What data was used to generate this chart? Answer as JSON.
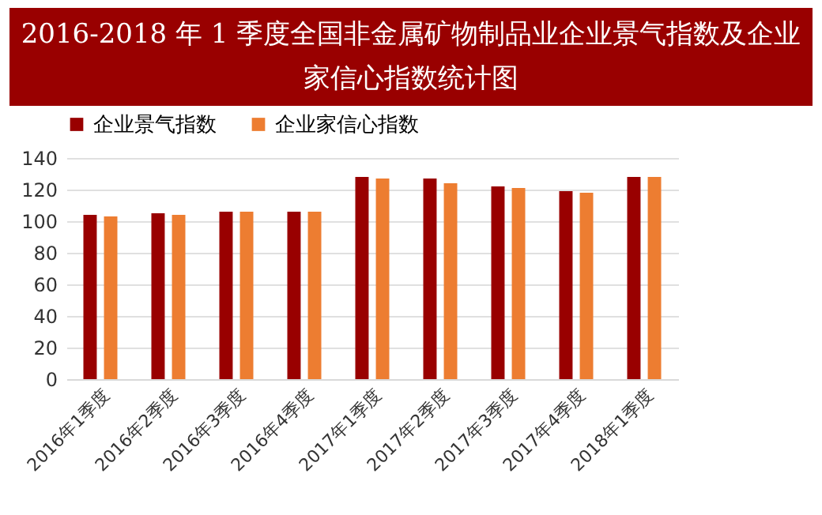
{
  "chart_data": {
    "type": "bar",
    "title": "2016-2018 年 1 季度全国非金属矿物制品业企业景气指数及企业家信心指数统计图",
    "categories": [
      "2016年1季度",
      "2016年2季度",
      "2016年3季度",
      "2016年4季度",
      "2017年1季度",
      "2017年2季度",
      "2017年3季度",
      "2017年4季度",
      "2018年1季度"
    ],
    "series": [
      {
        "name": "企业景气指数",
        "color": "#990000",
        "values": [
          104,
          105,
          106,
          106,
          128,
          127,
          122,
          119,
          128
        ]
      },
      {
        "name": "企业家信心指数",
        "color": "#ed7d31",
        "values": [
          103,
          104,
          106,
          106,
          127,
          124,
          121,
          118,
          128
        ]
      }
    ],
    "ylim": [
      0,
      140
    ],
    "yticks": [
      0,
      20,
      40,
      60,
      80,
      100,
      120,
      140
    ],
    "grid": "y",
    "legend": "top"
  }
}
